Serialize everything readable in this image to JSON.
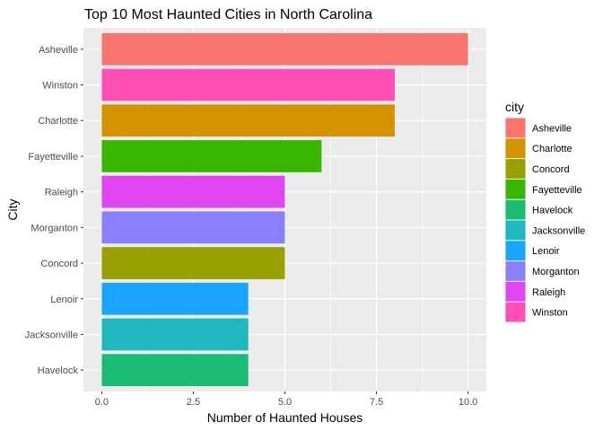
{
  "chart_data": {
    "type": "bar",
    "orientation": "horizontal",
    "title": "Top 10 Most Haunted Cities in North Carolina",
    "xlabel": "Number of Haunted Houses",
    "ylabel": "City",
    "xlim": [
      -0.5,
      10.5
    ],
    "x_ticks": [
      "0.0",
      "2.5",
      "5.0",
      "7.5",
      "10.0"
    ],
    "x_tick_values": [
      0,
      2.5,
      5,
      7.5,
      10
    ],
    "grid": true,
    "categories": [
      "Asheville",
      "Winston",
      "Charlotte",
      "Fayetteville",
      "Raleigh",
      "Morganton",
      "Concord",
      "Lenoir",
      "Jacksonville",
      "Havelock"
    ],
    "values": [
      10,
      8,
      8,
      6,
      5,
      5,
      5,
      4,
      4,
      4
    ],
    "bar_colors": [
      "#F8766D",
      "#FF4FB7",
      "#D39200",
      "#39B600",
      "#E145F0",
      "#8A80FF",
      "#99A100",
      "#19A5FF",
      "#1FB8BE",
      "#1CBB74"
    ],
    "legend": {
      "title": "city",
      "position": "right",
      "entries": [
        {
          "label": "Asheville",
          "color": "#F8766D"
        },
        {
          "label": "Charlotte",
          "color": "#D39200"
        },
        {
          "label": "Concord",
          "color": "#99A100"
        },
        {
          "label": "Fayetteville",
          "color": "#39B600"
        },
        {
          "label": "Havelock",
          "color": "#1CBB74"
        },
        {
          "label": "Jacksonville",
          "color": "#1FB8BE"
        },
        {
          "label": "Lenoir",
          "color": "#19A5FF"
        },
        {
          "label": "Morganton",
          "color": "#8A80FF"
        },
        {
          "label": "Raleigh",
          "color": "#E145F0"
        },
        {
          "label": "Winston",
          "color": "#FF4FB7"
        }
      ]
    },
    "panel_background": "#EBEBEB",
    "gridline_color": "#FFFFFF"
  }
}
